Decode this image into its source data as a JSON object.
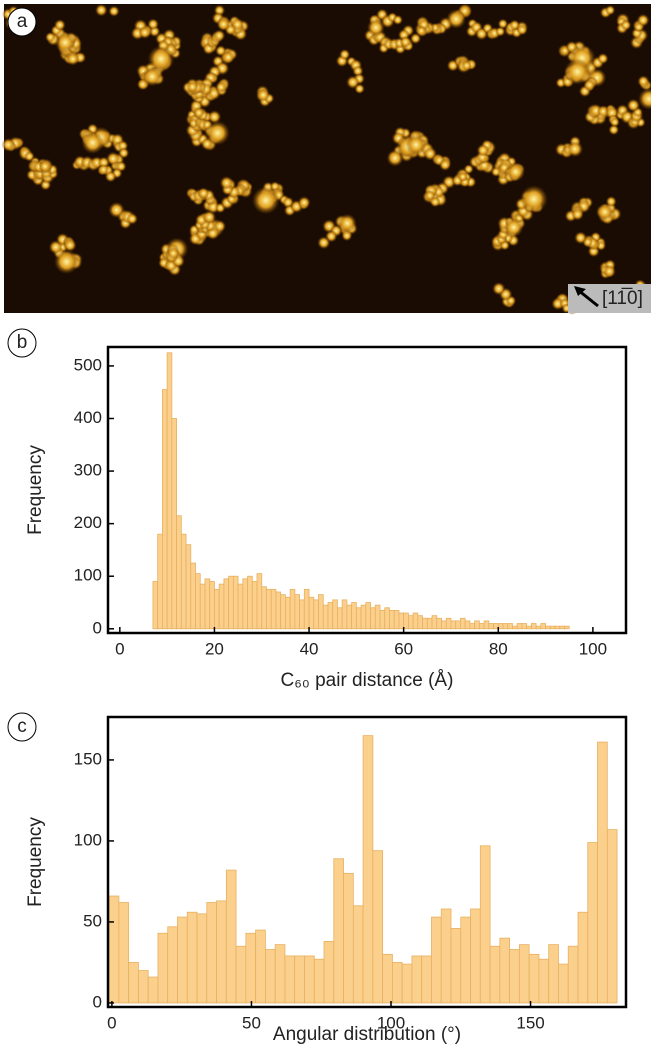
{
  "image": {
    "panel_label": "a",
    "direction": "[11̅0]"
  },
  "chart_data": [
    {
      "type": "histogram",
      "panel_label": "b",
      "x_label": "C₆₀ pair distance (Å)",
      "y_label": "Frequency",
      "bins": [
        7,
        8,
        9,
        10,
        11,
        12,
        13,
        14,
        15,
        16,
        17,
        18,
        19,
        20,
        21,
        22,
        23,
        24,
        25,
        26,
        27,
        28,
        29,
        30,
        31,
        32,
        33,
        34,
        35,
        36,
        37,
        38,
        39,
        40,
        41,
        42,
        43,
        44,
        45,
        46,
        47,
        48,
        49,
        50,
        51,
        52,
        53,
        54,
        55,
        56,
        57,
        58,
        59,
        60,
        61,
        62,
        63,
        64,
        65,
        66,
        67,
        68,
        69,
        70,
        71,
        72,
        73,
        74,
        75,
        76,
        77,
        78,
        79,
        80,
        81,
        82,
        83,
        84,
        85,
        86,
        87,
        88,
        89,
        90,
        91,
        92,
        93,
        94,
        95
      ],
      "counts": [
        90,
        180,
        455,
        525,
        400,
        215,
        180,
        160,
        125,
        105,
        85,
        95,
        90,
        75,
        85,
        95,
        100,
        100,
        85,
        95,
        100,
        90,
        105,
        80,
        75,
        75,
        70,
        65,
        60,
        75,
        65,
        55,
        75,
        60,
        55,
        65,
        45,
        50,
        55,
        40,
        55,
        45,
        50,
        40,
        45,
        50,
        40,
        45,
        35,
        40,
        35,
        35,
        30,
        30,
        25,
        30,
        25,
        20,
        20,
        25,
        20,
        15,
        20,
        15,
        15,
        20,
        15,
        10,
        15,
        10,
        15,
        10,
        10,
        10,
        10,
        10,
        5,
        10,
        10,
        5,
        10,
        5,
        10,
        5,
        5,
        5,
        5,
        5
      ],
      "color": "#fbd08c",
      "edgecolor": "#e8b060",
      "xlim": [
        -2.5,
        107
      ],
      "xticks": [
        0,
        20,
        40,
        60,
        80,
        100
      ],
      "ylim": [
        -8,
        536
      ],
      "yticks": [
        0,
        100,
        200,
        300,
        400,
        500
      ]
    },
    {
      "type": "histogram",
      "panel_label": "c",
      "x_label": "Angular distribution (°)",
      "y_label": "Frequency",
      "bins": [
        -1,
        2.5,
        6,
        9.5,
        13,
        16.5,
        20,
        23.5,
        27,
        30.5,
        34,
        37.5,
        41,
        44.5,
        48,
        51.5,
        55,
        58.5,
        62,
        65.5,
        69,
        72.5,
        76,
        79.5,
        83,
        86.5,
        90,
        93.5,
        97,
        100.5,
        104,
        107.5,
        111,
        114.5,
        118,
        121.5,
        125,
        128.5,
        132,
        135.5,
        139,
        142.5,
        146,
        149.5,
        153,
        156.5,
        160,
        163.5,
        167,
        170.5,
        174,
        177.5,
        181
      ],
      "counts": [
        66,
        62,
        25,
        20,
        16,
        43,
        47,
        53,
        56,
        55,
        62,
        63,
        82,
        35,
        43,
        45,
        33,
        36,
        29,
        29,
        29,
        27,
        38,
        89,
        80,
        60,
        165,
        94,
        30,
        25,
        24,
        29,
        29,
        53,
        58,
        46,
        53,
        58,
        97,
        35,
        40,
        33,
        36,
        30,
        27,
        36,
        24,
        35,
        56,
        99,
        161,
        107
      ],
      "color": "#fbd08c",
      "edgecolor": "#e8b060",
      "xlim": [
        -1.4,
        184.2
      ],
      "xticks": [
        0,
        50,
        100,
        150
      ],
      "ylim": [
        -2.5,
        176.5
      ],
      "yticks": [
        0,
        50,
        100,
        150
      ]
    }
  ]
}
